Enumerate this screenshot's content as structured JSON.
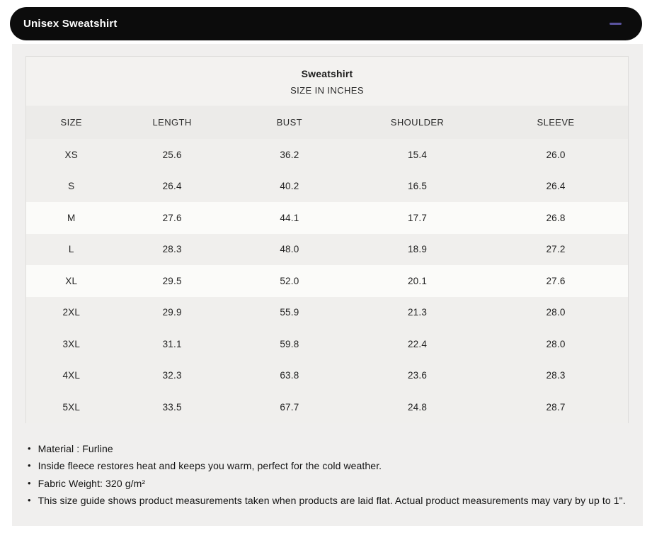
{
  "header": {
    "title": "Unisex Sweatshirt",
    "collapse_icon": "minus"
  },
  "size_chart": {
    "title": "Sweatshirt",
    "subtitle": "SIZE IN INCHES",
    "columns": [
      "SIZE",
      "LENGTH",
      "BUST",
      "SHOULDER",
      "SLEEVE"
    ],
    "rows": [
      {
        "size": "XS",
        "length": "25.6",
        "bust": "36.2",
        "shoulder": "15.4",
        "sleeve": "26.0"
      },
      {
        "size": "S",
        "length": "26.4",
        "bust": "40.2",
        "shoulder": "16.5",
        "sleeve": "26.4"
      },
      {
        "size": "M",
        "length": "27.6",
        "bust": "44.1",
        "shoulder": "17.7",
        "sleeve": "26.8"
      },
      {
        "size": "L",
        "length": "28.3",
        "bust": "48.0",
        "shoulder": "18.9",
        "sleeve": "27.2"
      },
      {
        "size": "XL",
        "length": "29.5",
        "bust": "52.0",
        "shoulder": "20.1",
        "sleeve": "27.6"
      },
      {
        "size": "2XL",
        "length": "29.9",
        "bust": "55.9",
        "shoulder": "21.3",
        "sleeve": "28.0"
      },
      {
        "size": "3XL",
        "length": "31.1",
        "bust": "59.8",
        "shoulder": "22.4",
        "sleeve": "28.0"
      },
      {
        "size": "4XL",
        "length": "32.3",
        "bust": "63.8",
        "shoulder": "23.6",
        "sleeve": "28.3"
      },
      {
        "size": "5XL",
        "length": "33.5",
        "bust": "67.7",
        "shoulder": "24.8",
        "sleeve": "28.7"
      }
    ]
  },
  "notes": [
    "Material : Furline",
    "Inside fleece restores heat and keeps you warm, perfect for the cold weather.",
    "Fabric Weight: 320 g/m²",
    "This size guide shows product measurements taken when products are laid flat. Actual product measurements may vary by up to 1\"."
  ],
  "colors": {
    "header_bg": "#0c0c0c",
    "minus_accent": "#5b54a0",
    "panel_bg": "#f0efee",
    "row_highlight": "#fbfbf9"
  }
}
